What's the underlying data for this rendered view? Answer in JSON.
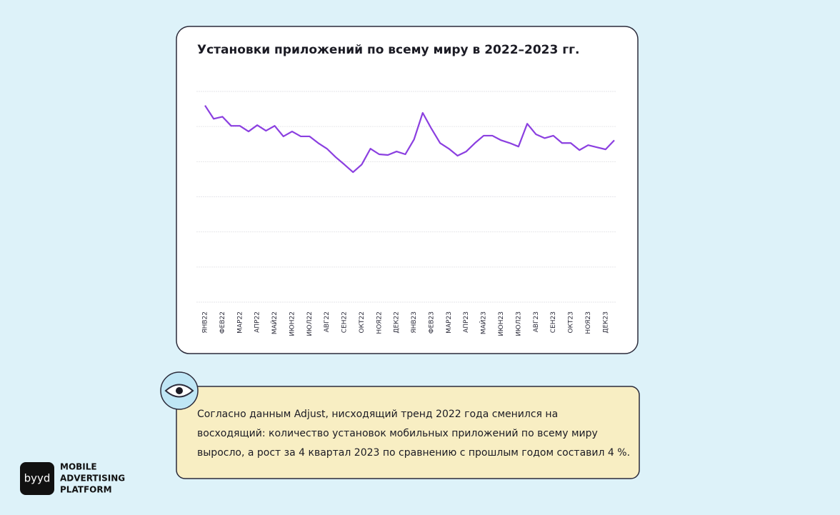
{
  "chart_data": {
    "type": "line",
    "title": "Установки приложений по всему миру в 2022–2023 гг.",
    "x": [
      0,
      0.5,
      1,
      1.5,
      2,
      2.5,
      3,
      3.5,
      4,
      4.5,
      5,
      5.5,
      6,
      6.5,
      7,
      7.5,
      8,
      8.5,
      9,
      9.5,
      10,
      10.5,
      11,
      11.5,
      12,
      12.5,
      13,
      13.5,
      14,
      14.5,
      15,
      15.5,
      16,
      16.5,
      17,
      17.5,
      18,
      18.5,
      19,
      19.5,
      20,
      20.5,
      21,
      21.5,
      22,
      22.5,
      23,
      23.5
    ],
    "series": [
      {
        "color": "#8b3fe0",
        "values": [
          5.6,
          5.22,
          5.28,
          5.02,
          5.02,
          4.86,
          5.04,
          4.88,
          5.02,
          4.72,
          4.86,
          4.72,
          4.72,
          4.53,
          4.37,
          4.13,
          3.92,
          3.7,
          3.92,
          4.37,
          4.21,
          4.19,
          4.29,
          4.21,
          4.63,
          5.39,
          4.94,
          4.53,
          4.37,
          4.17,
          4.29,
          4.53,
          4.74,
          4.74,
          4.61,
          4.53,
          4.43,
          5.08,
          4.78,
          4.67,
          4.74,
          4.53,
          4.53,
          4.33,
          4.47,
          4.41,
          4.35,
          4.61
        ]
      }
    ],
    "xlim": [
      0,
      23.5
    ],
    "xticks": [
      {
        "value": 0,
        "label": "ЯНВ22"
      },
      {
        "value": 1,
        "label": "ФЕВ22"
      },
      {
        "value": 2,
        "label": "МАР22"
      },
      {
        "value": 3,
        "label": "АПР22"
      },
      {
        "value": 4,
        "label": "МАЙ22"
      },
      {
        "value": 5,
        "label": "ИЮН22"
      },
      {
        "value": 6,
        "label": "ИЮЛ22"
      },
      {
        "value": 7,
        "label": "АВГ22"
      },
      {
        "value": 8,
        "label": "СЕН22"
      },
      {
        "value": 9,
        "label": "ОКТ22"
      },
      {
        "value": 10,
        "label": "НОЯ22"
      },
      {
        "value": 11,
        "label": "ДЕК22"
      },
      {
        "value": 12,
        "label": "ЯНВ23"
      },
      {
        "value": 13,
        "label": "ФЕВ23"
      },
      {
        "value": 14,
        "label": "МАР23"
      },
      {
        "value": 15,
        "label": "АПР23"
      },
      {
        "value": 16,
        "label": "МАЙ23"
      },
      {
        "value": 17,
        "label": "ИЮН23"
      },
      {
        "value": 18,
        "label": "ИЮЛ23"
      },
      {
        "value": 19,
        "label": "АВГ23"
      },
      {
        "value": 20,
        "label": "СЕН23"
      },
      {
        "value": 21,
        "label": "ОКТ23"
      },
      {
        "value": 22,
        "label": "НОЯ23"
      },
      {
        "value": 23,
        "label": "ДЕК23"
      }
    ],
    "ylim": [
      0,
      6
    ],
    "yticks": [
      0,
      1,
      2,
      3,
      4,
      5,
      6
    ],
    "grid": true,
    "show_ytick_labels": false
  },
  "callout": {
    "lines": [
      "Согласно данным Adjust, нисходящий тренд 2022 года сменился на",
      "восходящий: количество установок мобильных приложений по всему миру",
      "выросло, а рост за 4 квартал 2023 по сравнению с прошлым годом составил 4 %."
    ]
  },
  "logo": {
    "mark": "byyd",
    "lines": [
      "MOBILE",
      "ADVERTISING",
      "PLATFORM"
    ]
  }
}
